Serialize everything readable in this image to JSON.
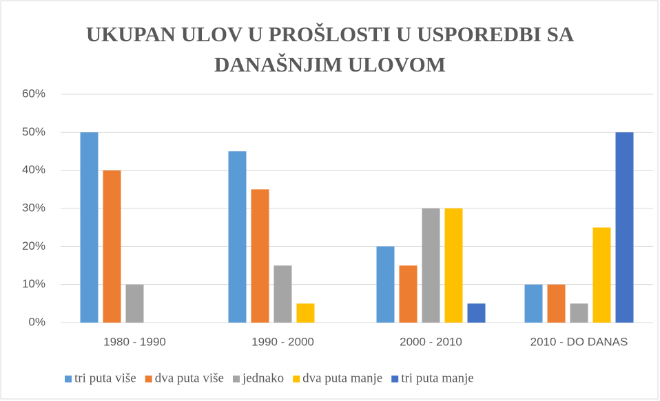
{
  "chart_data": {
    "type": "bar",
    "title": "UKUPAN ULOV U PROŠLOSTI U USPOREDBI SA DANAŠNJIM ULOVOM",
    "categories": [
      "1980 - 1990",
      "1990 - 2000",
      "2000 - 2010",
      "2010 - DO DANAS"
    ],
    "series": [
      {
        "name": "tri puta više",
        "color": "#5b9bd5",
        "values": [
          50,
          45,
          20,
          10
        ]
      },
      {
        "name": "dva puta više",
        "color": "#ed7d31",
        "values": [
          40,
          35,
          15,
          10
        ]
      },
      {
        "name": "jednako",
        "color": "#a5a5a5",
        "values": [
          10,
          15,
          30,
          5
        ]
      },
      {
        "name": "dva puta manje",
        "color": "#ffc000",
        "values": [
          0,
          5,
          30,
          25
        ]
      },
      {
        "name": "tri puta manje",
        "color": "#4472c4",
        "values": [
          0,
          0,
          5,
          50
        ]
      }
    ],
    "ylim": [
      0,
      60
    ],
    "yticks": [
      {
        "value": 0,
        "label": "0%"
      },
      {
        "value": 10,
        "label": "10%"
      },
      {
        "value": 20,
        "label": "20%"
      },
      {
        "value": 30,
        "label": "30%"
      },
      {
        "value": 40,
        "label": "40%"
      },
      {
        "value": 50,
        "label": "50%"
      },
      {
        "value": 60,
        "label": "60%"
      }
    ],
    "grid": true,
    "legend": "bottom"
  }
}
